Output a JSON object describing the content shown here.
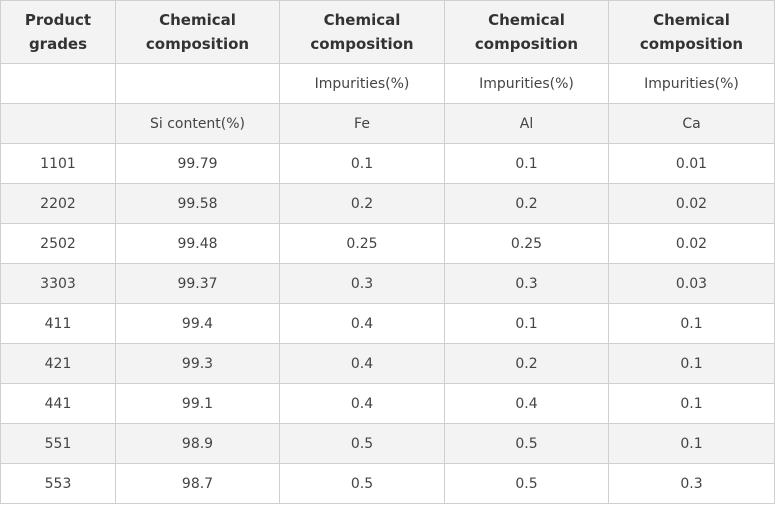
{
  "header": {
    "product_grades": "Product grades",
    "col1": "Chemical composition",
    "col2": "Chemical composition",
    "col3": "Chemical composition",
    "col4": "Chemical composition"
  },
  "subheader_top": [
    "",
    "",
    "Impurities(%)",
    "Impurities(%)",
    "Impurities(%)"
  ],
  "subheader_bottom": [
    "",
    "Si content(%)",
    "Fe",
    "Al",
    "Ca"
  ],
  "rows": [
    [
      "1101",
      "99.79",
      "0.1",
      "0.1",
      "0.01"
    ],
    [
      "2202",
      "99.58",
      "0.2",
      "0.2",
      "0.02"
    ],
    [
      "2502",
      "99.48",
      "0.25",
      "0.25",
      "0.02"
    ],
    [
      "3303",
      "99.37",
      "0.3",
      "0.3",
      "0.03"
    ],
    [
      "411",
      "99.4",
      "0.4",
      "0.1",
      "0.1"
    ],
    [
      "421",
      "99.3",
      "0.4",
      "0.2",
      "0.1"
    ],
    [
      "441",
      "99.1",
      "0.4",
      "0.4",
      "0.1"
    ],
    [
      "551",
      "98.9",
      "0.5",
      "0.5",
      "0.1"
    ],
    [
      "553",
      "98.7",
      "0.5",
      "0.5",
      "0.3"
    ]
  ]
}
